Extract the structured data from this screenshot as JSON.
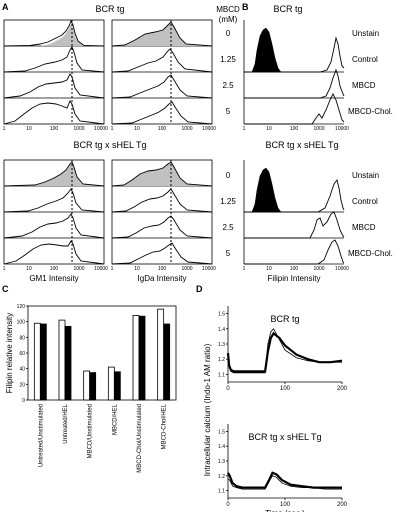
{
  "panel_letters": {
    "a": "A",
    "b": "B",
    "c": "C",
    "d": "D"
  },
  "panel_a": {
    "titles": [
      "BCR tg",
      "BCR tg x sHEL Tg"
    ],
    "mbcd_header": [
      "MBCD",
      "(mM)"
    ],
    "concentrations": [
      "0",
      "1.25",
      "2.5",
      "5"
    ],
    "x_ticks": [
      "1",
      "10",
      "100",
      "1000",
      "10000"
    ],
    "xlabels": [
      "GM1 Intensity",
      "IgDa Intensity"
    ]
  },
  "panel_b": {
    "titles": [
      "BCR tg",
      "BCR tg x sHEL Tg"
    ],
    "conditions": [
      "Unstain",
      "Control",
      "MBCD",
      "MBCD-Chol."
    ],
    "x_ticks": [
      "1",
      "10",
      "100",
      "1000",
      "10000"
    ],
    "xlabel": "Filipin Intensity"
  },
  "chart_data": [
    {
      "type": "bar",
      "panel": "C",
      "ylabel": "Filipin relative intensity",
      "ylim": [
        0,
        120
      ],
      "y_ticks": [
        "0",
        "20",
        "40",
        "60",
        "80",
        "100",
        "120"
      ],
      "categories": [
        "Untreated/Unstimulated",
        "Untreated/HEL",
        "MBCD/Unstimulated",
        "MBCD/HEL",
        "MBCD-Chol/Unstimulated",
        "MBCD-Chol/HEL"
      ],
      "series": [
        {
          "color": "#ffffff",
          "values": [
            98,
            102,
            37,
            42,
            108,
            116
          ]
        },
        {
          "color": "#000000",
          "values": [
            97,
            94,
            35,
            36,
            107,
            97
          ]
        }
      ]
    },
    {
      "type": "line",
      "panel": "D",
      "title": "BCR tg",
      "ylabel": "Intracellular calcium (Indo-1 AM ratio)",
      "xlim": [
        0,
        200
      ],
      "ylim": [
        1.05,
        1.55
      ],
      "x_ticks": [
        "0",
        "100",
        "200"
      ],
      "y_ticks": [
        "1.1",
        "1.2",
        "1.3",
        "1.4",
        "1.5"
      ],
      "series": [
        {
          "style": "thick",
          "x": [
            0,
            2,
            5,
            10,
            20,
            40,
            60,
            65,
            70,
            75,
            80,
            90,
            100,
            120,
            140,
            160,
            180,
            200
          ],
          "y": [
            1.24,
            1.16,
            1.13,
            1.12,
            1.12,
            1.12,
            1.12,
            1.12,
            1.25,
            1.34,
            1.37,
            1.34,
            1.29,
            1.23,
            1.2,
            1.18,
            1.18,
            1.19
          ]
        },
        {
          "style": "thin",
          "x": [
            0,
            2,
            5,
            10,
            20,
            40,
            60,
            65,
            70,
            75,
            80,
            90,
            100,
            120,
            140,
            160,
            180,
            200
          ],
          "y": [
            1.2,
            1.15,
            1.12,
            1.11,
            1.11,
            1.11,
            1.11,
            1.11,
            1.3,
            1.38,
            1.4,
            1.33,
            1.26,
            1.21,
            1.19,
            1.18,
            1.18,
            1.18
          ]
        }
      ]
    },
    {
      "type": "line",
      "panel": "D",
      "title": "BCR tg x sHEL Tg",
      "xlabel": "Time (sec.)",
      "xlim": [
        0,
        200
      ],
      "ylim": [
        1.05,
        1.55
      ],
      "x_ticks": [
        "0",
        "100",
        "200"
      ],
      "y_ticks": [
        "1.1",
        "1.2",
        "1.3",
        "1.4",
        "1.5"
      ],
      "series": [
        {
          "style": "thick",
          "x": [
            0,
            3,
            8,
            15,
            25,
            40,
            60,
            65,
            72,
            78,
            85,
            95,
            110,
            130,
            150,
            170,
            200
          ],
          "y": [
            1.22,
            1.2,
            1.15,
            1.13,
            1.12,
            1.12,
            1.12,
            1.12,
            1.17,
            1.22,
            1.21,
            1.17,
            1.14,
            1.13,
            1.12,
            1.12,
            1.12
          ]
        },
        {
          "style": "thin",
          "x": [
            0,
            3,
            8,
            15,
            25,
            40,
            60,
            65,
            72,
            78,
            85,
            95,
            110,
            130,
            150,
            170,
            200
          ],
          "y": [
            1.18,
            1.17,
            1.13,
            1.12,
            1.11,
            1.11,
            1.11,
            1.11,
            1.16,
            1.2,
            1.19,
            1.15,
            1.13,
            1.12,
            1.12,
            1.11,
            1.11
          ]
        }
      ]
    }
  ]
}
